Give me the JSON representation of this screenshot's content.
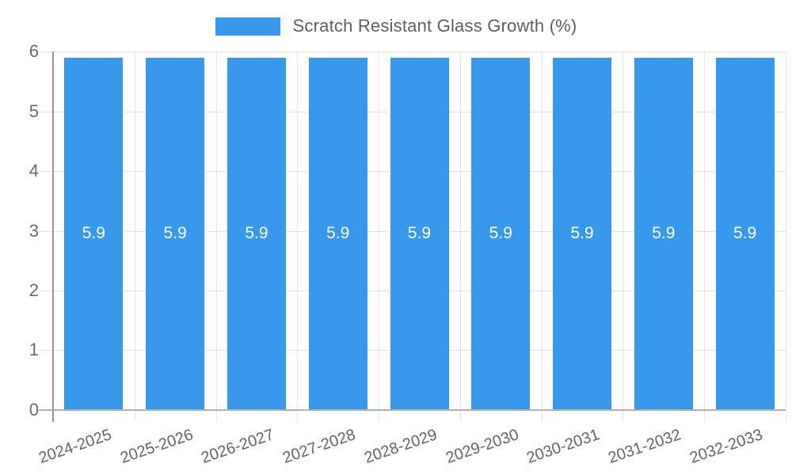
{
  "legend": {
    "label": "Scratch Resistant Glass Growth (%)",
    "swatch_color": "#3899ec"
  },
  "chart_data": {
    "type": "bar",
    "title": "Scratch Resistant Glass Growth (%)",
    "categories": [
      "2024-2025",
      "2025-2026",
      "2026-2027",
      "2027-2028",
      "2028-2029",
      "2029-2030",
      "2030-2031",
      "2031-2032",
      "2032-2033"
    ],
    "values": [
      5.9,
      5.9,
      5.9,
      5.9,
      5.9,
      5.9,
      5.9,
      5.9,
      5.9
    ],
    "value_labels": [
      "5.9",
      "5.9",
      "5.9",
      "5.9",
      "5.9",
      "5.9",
      "5.9",
      "5.9",
      "5.9"
    ],
    "ylim": [
      0,
      6
    ],
    "y_tick_labels": [
      "6",
      "5",
      "4",
      "3",
      "2",
      "1",
      "0"
    ],
    "xlabel": "",
    "ylabel": "",
    "grid": true,
    "legend_position": "top-center",
    "bar_color": "#3899ec",
    "bar_value_text_color": "#ffffff",
    "axis_label_color": "#666666",
    "gridline_color": "#e3e3e3",
    "axis_line_color": "#979797"
  }
}
